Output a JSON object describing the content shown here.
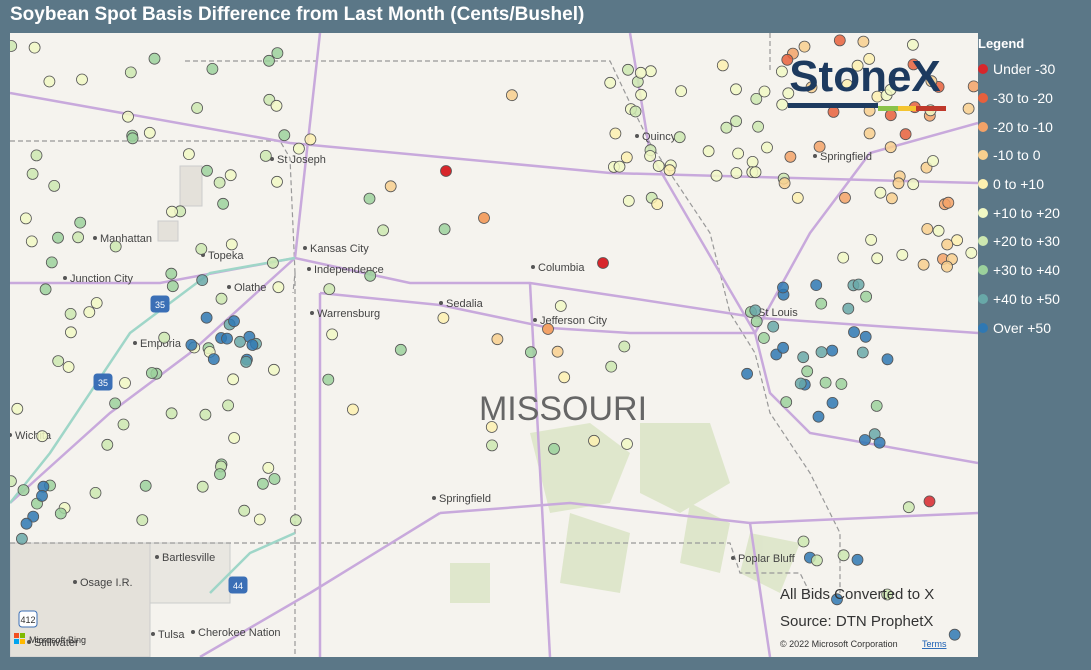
{
  "header": {
    "title": "Soybean Spot Basis Difference from Last Month (Cents/Bushel)"
  },
  "legend": {
    "title": "Legend",
    "items": [
      {
        "label": "Under -30",
        "color": "#d7262b"
      },
      {
        "label": "-30 to -20",
        "color": "#e8603c"
      },
      {
        "label": "-20 to -10",
        "color": "#f3a267"
      },
      {
        "label": "-10 to 0",
        "color": "#f8cf8e"
      },
      {
        "label": "0 to +10",
        "color": "#fdf0b0"
      },
      {
        "label": "+10 to +20",
        "color": "#f1f8c4"
      },
      {
        "label": "+20 to +30",
        "color": "#cde7b0"
      },
      {
        "label": "+30 to +40",
        "color": "#9cd19c"
      },
      {
        "label": "+40 to +50",
        "color": "#68a8a8"
      },
      {
        "label": "Over +50",
        "color": "#2f78b3"
      }
    ]
  },
  "map": {
    "state_label": "MISSOURI",
    "logo": "StoneX",
    "cities": [
      "St Joseph",
      "Manhattan",
      "Topeka",
      "Kansas City",
      "Independence",
      "Junction City",
      "Olathe",
      "Warrensburg",
      "Sedalia",
      "Columbia",
      "Jefferson City",
      "Emporia",
      "St Louis",
      "Springfield",
      "Springfield",
      "Quincy",
      "Wichita",
      "Bartlesville",
      "Osage I.R.",
      "Tulsa",
      "Cherokee Nation",
      "Poplar Bluff",
      "Stillwater"
    ],
    "shields": [
      "35",
      "35",
      "44",
      "412"
    ],
    "notes": [
      "All Bids Converted to X",
      "Source: DTN ProphetX"
    ],
    "attribution": {
      "bing": "Microsoft Bing",
      "copyright": "© 2022 Microsoft Corporation",
      "terms": "Terms"
    }
  }
}
